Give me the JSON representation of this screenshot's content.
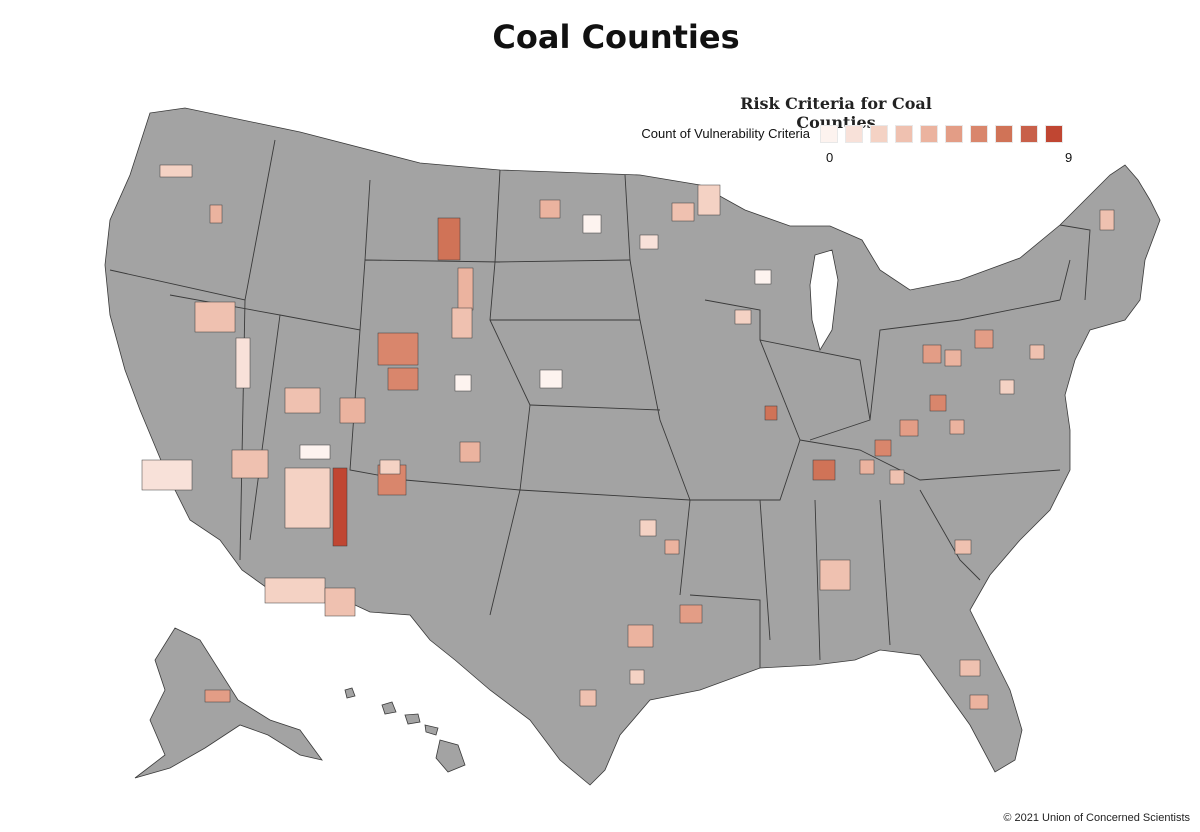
{
  "title": "Coal Counties",
  "legend": {
    "title": "Risk Criteria for Coal Counties",
    "label": "Count of Vulnerability Criteria",
    "min_label": "0",
    "max_label": "9",
    "colors": [
      "#fdf3ef",
      "#f8e1d9",
      "#f4d2c4",
      "#efc1b0",
      "#ebb39f",
      "#e39d86",
      "#d9866c",
      "#d07357",
      "#c8604a",
      "#c04632"
    ]
  },
  "map": {
    "base_color": "#a3a3a3",
    "border_color": "#3a3a3a",
    "region_names": [
      "Contiguous United States",
      "Alaska",
      "Hawaii"
    ]
  },
  "copyright": "© 2021 Union of Concerned Scientists"
}
